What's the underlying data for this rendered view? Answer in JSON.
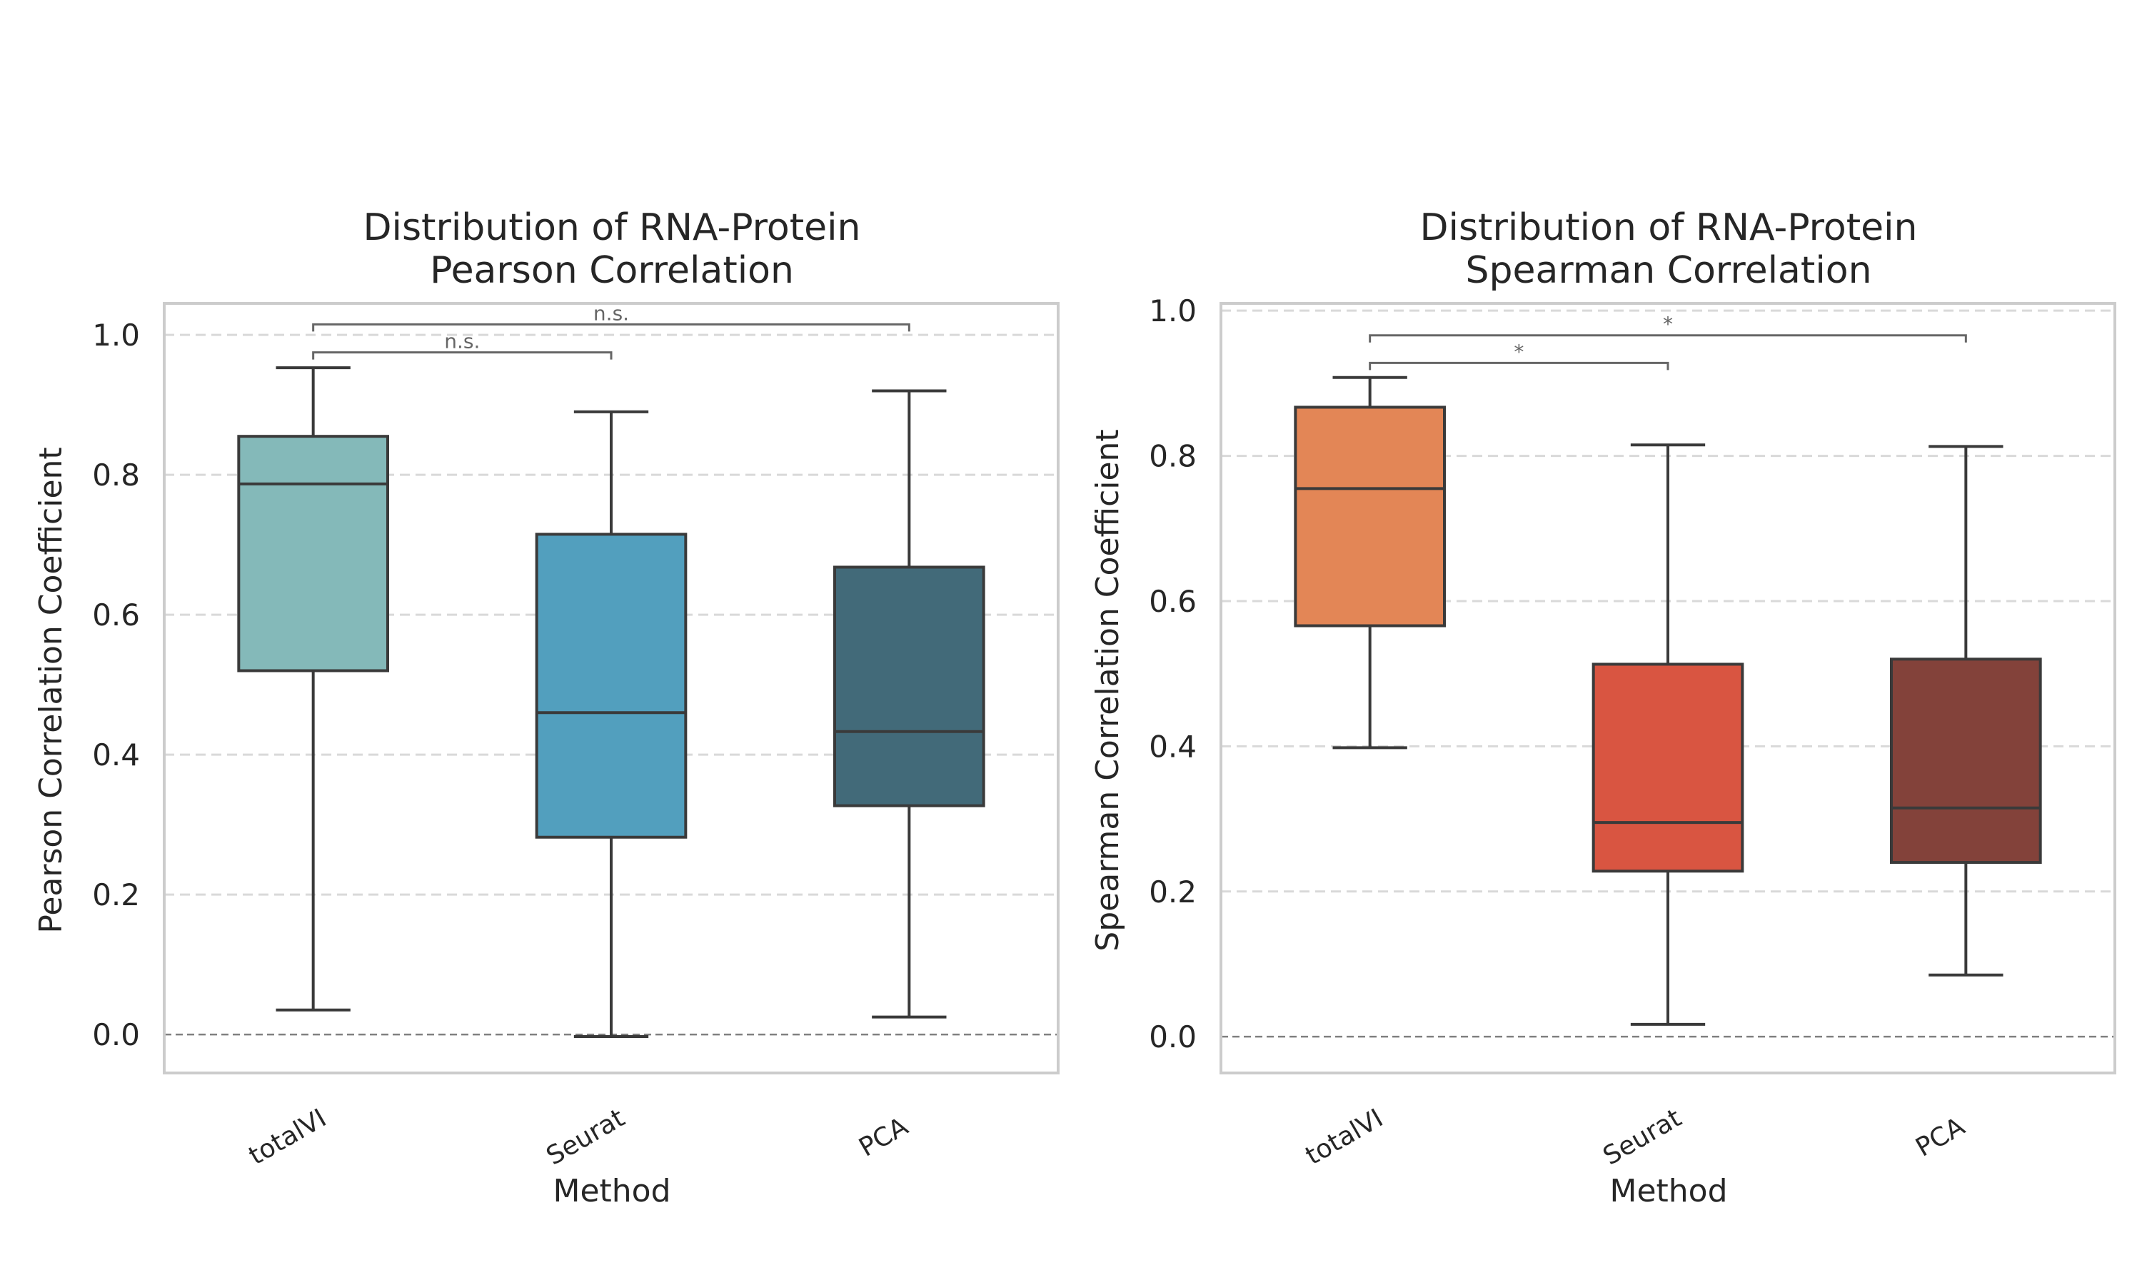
{
  "chart_data": [
    {
      "type": "box",
      "title_line1": "Distribution of RNA-Protein",
      "title_line2": "Pearson Correlation",
      "xlabel": "Method",
      "ylabel": "Pearson Correlation Coefficient",
      "ylim": [
        -0.055,
        1.045
      ],
      "yticks": [
        0.0,
        0.2,
        0.4,
        0.6,
        0.8,
        1.0
      ],
      "ytick_labels": [
        "0.0",
        "0.2",
        "0.4",
        "0.6",
        "0.8",
        "1.0"
      ],
      "grid": true,
      "reference_line": 0.0,
      "categories": [
        "totalVI",
        "Seurat",
        "PCA"
      ],
      "boxes": [
        {
          "label": "totalVI",
          "whisker_low": 0.035,
          "q1": 0.52,
          "median": 0.787,
          "q3": 0.855,
          "whisker_high": 0.953,
          "color": "#84b9b9"
        },
        {
          "label": "Seurat",
          "whisker_low": -0.003,
          "q1": 0.282,
          "median": 0.46,
          "q3": 0.715,
          "whisker_high": 0.89,
          "color": "#529fbe"
        },
        {
          "label": "PCA",
          "whisker_low": 0.025,
          "q1": 0.327,
          "median": 0.433,
          "q3": 0.668,
          "whisker_high": 0.92,
          "color": "#426a79"
        }
      ],
      "annotations": [
        {
          "from": 0,
          "to": 1,
          "y": 0.975,
          "text": "n.s."
        },
        {
          "from": 0,
          "to": 2,
          "y": 1.015,
          "text": "n.s."
        }
      ]
    },
    {
      "type": "box",
      "title_line1": "Distribution of RNA-Protein",
      "title_line2": "Spearman Correlation",
      "xlabel": "Method",
      "ylabel": "Spearman Correlation Coefficient",
      "ylim": [
        -0.05,
        1.01
      ],
      "yticks": [
        0.0,
        0.2,
        0.4,
        0.6,
        0.8,
        1.0
      ],
      "ytick_labels": [
        "0.0",
        "0.2",
        "0.4",
        "0.6",
        "0.8",
        "1.0"
      ],
      "grid": true,
      "reference_line": 0.0,
      "categories": [
        "totalVI",
        "Seurat",
        "PCA"
      ],
      "boxes": [
        {
          "label": "totalVI",
          "whisker_low": 0.398,
          "q1": 0.566,
          "median": 0.755,
          "q3": 0.867,
          "whisker_high": 0.908,
          "color": "#e38656"
        },
        {
          "label": "Seurat",
          "whisker_low": 0.017,
          "q1": 0.228,
          "median": 0.295,
          "q3": 0.513,
          "whisker_high": 0.815,
          "color": "#d95541"
        },
        {
          "label": "PCA",
          "whisker_low": 0.085,
          "q1": 0.24,
          "median": 0.315,
          "q3": 0.52,
          "whisker_high": 0.813,
          "color": "#83423a"
        }
      ],
      "annotations": [
        {
          "from": 0,
          "to": 1,
          "y": 0.928,
          "text": "*"
        },
        {
          "from": 0,
          "to": 2,
          "y": 0.966,
          "text": "*"
        }
      ]
    }
  ]
}
